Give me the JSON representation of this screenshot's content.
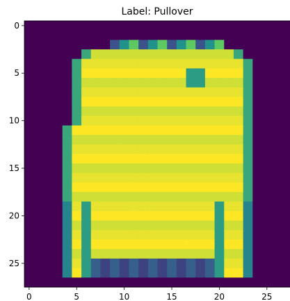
{
  "chart_data": {
    "type": "heatmap",
    "title": "Label: Pullover",
    "xlabel": "",
    "ylabel": "",
    "x_ticks": [
      "0",
      "5",
      "10",
      "15",
      "20",
      "25"
    ],
    "y_ticks": [
      "0",
      "5",
      "10",
      "15",
      "20",
      "25"
    ],
    "grid": false,
    "xlim": [
      -0.5,
      27.5
    ],
    "ylim": [
      27.5,
      -0.5
    ],
    "colormap": "viridis",
    "value_range": [
      0,
      255
    ],
    "rows": 28,
    "cols": 28,
    "shape": {
      "left_edge": [
        28,
        28,
        9,
        6,
        5,
        5,
        5,
        5,
        5,
        5,
        5,
        4,
        4,
        4,
        4,
        4,
        4,
        4,
        4,
        4,
        4,
        4,
        4,
        4,
        4,
        4,
        4,
        28
      ],
      "right_edge": [
        -1,
        -1,
        20,
        22,
        23,
        23,
        23,
        23,
        23,
        23,
        23,
        23,
        23,
        23,
        23,
        23,
        23,
        23,
        23,
        23,
        23,
        23,
        23,
        23,
        23,
        23,
        23,
        -1
      ]
    }
  }
}
